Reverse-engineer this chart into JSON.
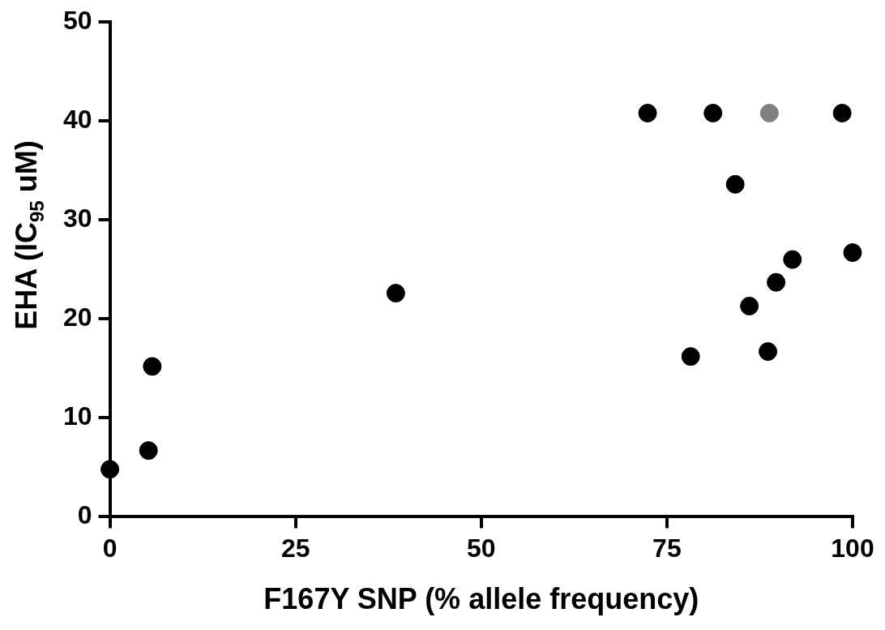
{
  "chart_data": {
    "type": "scatter",
    "xlabel": "F167Y SNP (% allele frequency)",
    "ylabel": "EHA (IC$_{95}$ uM)",
    "xlim": [
      0,
      100
    ],
    "xticks": [
      0,
      25,
      50,
      75,
      100
    ],
    "ylim": [
      0,
      50
    ],
    "yticks": [
      0,
      10,
      20,
      30,
      40,
      50
    ],
    "grid": false,
    "legend": false,
    "marker": "circle",
    "series": [
      {
        "color": "#000000",
        "x": [
          0,
          5.2,
          5.7,
          38.5,
          72.4,
          81.2,
          98.6,
          84.2,
          100,
          78.2,
          86.1,
          89.7,
          91.9,
          88.6
        ],
        "values": [
          4.8,
          6.7,
          15.2,
          22.6,
          40.8,
          40.8,
          40.8,
          33.6,
          26.7,
          16.2,
          21.3,
          23.7,
          26,
          16.7
        ]
      },
      {
        "color": "#808080",
        "x": [
          88.8
        ],
        "values": [
          40.8
        ]
      }
    ]
  }
}
